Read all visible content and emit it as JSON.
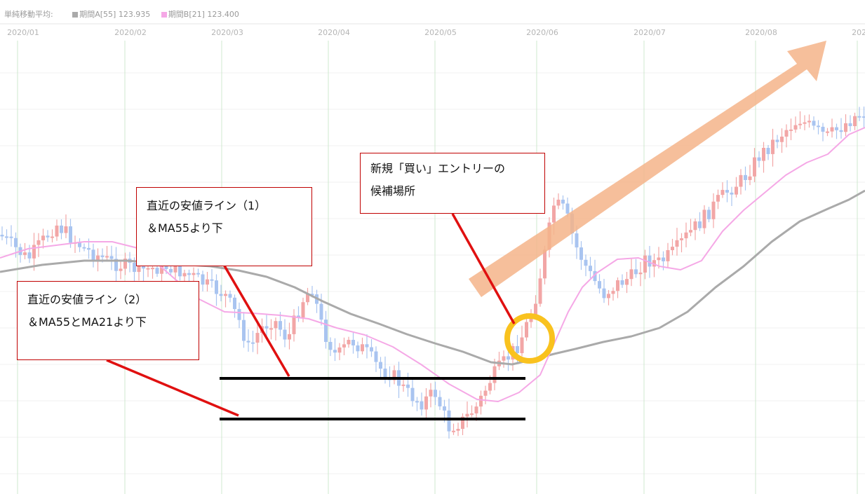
{
  "legend": {
    "title": "単純移動平均:",
    "series_a_label": "期間A[55] 123.935",
    "series_b_label": "期間B[21] 123.400",
    "series_a_color": "#aaaaaa",
    "series_b_color": "#f5a8e6"
  },
  "chart_data": {
    "type": "candlestick",
    "x_tick_labels": [
      "2020/01",
      "2020/02",
      "2020/03",
      "2020/04",
      "2020/05",
      "2020/06",
      "2020/07",
      "2020/08",
      "2020/"
    ],
    "series": [
      {
        "name": "期間A[55] 123.935",
        "kind": "moving-average",
        "color": "#aaaaaa"
      },
      {
        "name": "期間B[21] 123.400",
        "kind": "moving-average",
        "color": "#f5a8e6"
      }
    ],
    "up_color": "#f2a6a6",
    "down_color": "#a9c4f0",
    "grid": true
  },
  "annotations": {
    "callout1": {
      "line1": "直近の安値ライン（1）",
      "line2": "＆MA55より下"
    },
    "callout2": {
      "line1": "直近の安値ライン（2）",
      "line2": "＆MA55とMA21より下"
    },
    "callout3": {
      "line1": "新規「買い」エントリーの",
      "line2": "候補場所"
    },
    "arrow_color": "#f5b48a",
    "circle_color": "#f9c21e",
    "pointer_color": "#e01010"
  }
}
